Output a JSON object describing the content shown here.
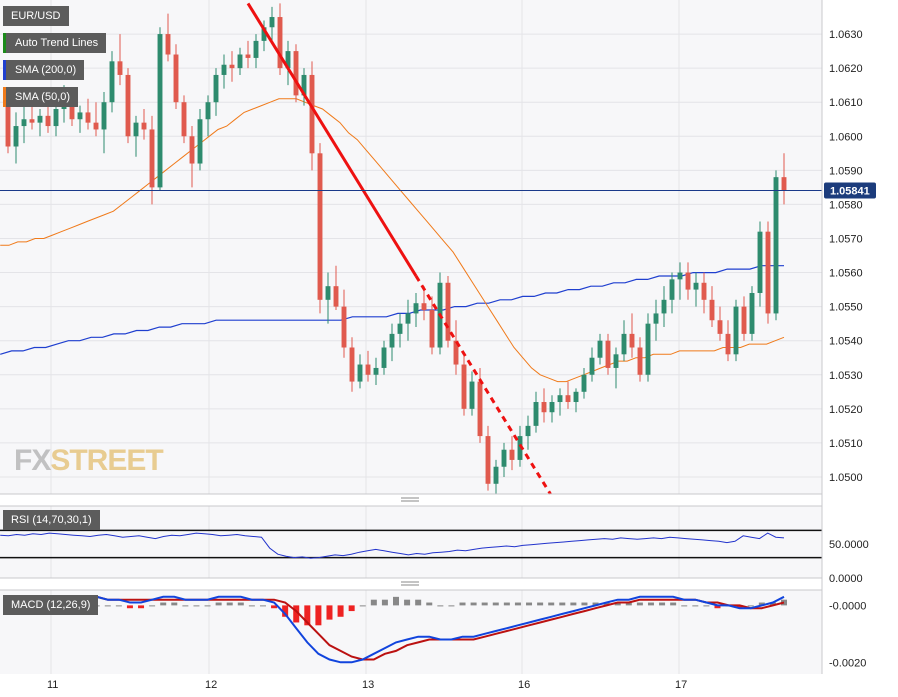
{
  "legend": {
    "symbol": "EUR/USD",
    "trend": "Auto Trend Lines",
    "sma200": "SMA (200,0)",
    "sma50": "SMA (50,0)",
    "rsi": "RSI (14,70,30,1)",
    "macd": "MACD (12,26,9)"
  },
  "watermark": {
    "fx": "FX",
    "street": "STREET"
  },
  "colors": {
    "bull": "#2e8b6e",
    "bear": "#e05a4e",
    "sma200": "#1f3fcf",
    "sma50": "#f07a1a",
    "trend": "#ee1111",
    "price_line": "#1a3a8a",
    "rsi": "#2233cc",
    "macd": "#1144dd",
    "signal": "#bb1111",
    "hist_pos": "#888888",
    "hist_neg": "#ee2222",
    "label_bg": "#5c5c5c",
    "legend_trend": "#1b8a1b",
    "legend_sma200": "#1f3fcf",
    "legend_sma50": "#f07a1a"
  },
  "chart_data": [
    {
      "type": "candlestick",
      "title": "EUR/USD",
      "ylim": [
        1.0495,
        1.064
      ],
      "y_ticks": [
        "1.0630",
        "1.0620",
        "1.0610",
        "1.0600",
        "1.0590",
        "1.0580",
        "1.0570",
        "1.0560",
        "1.0550",
        "1.0540",
        "1.0530",
        "1.0520",
        "1.0510",
        "1.0500"
      ],
      "x_ticks": [
        "11",
        "12",
        "13",
        "16",
        "17"
      ],
      "current_price": "1.05841",
      "ohlc": [
        [
          1.061,
          1.0613,
          1.0595,
          1.0597
        ],
        [
          1.0597,
          1.0607,
          1.0592,
          1.0603
        ],
        [
          1.0603,
          1.061,
          1.0598,
          1.0605
        ],
        [
          1.0605,
          1.061,
          1.0602,
          1.0604
        ],
        [
          1.0604,
          1.0608,
          1.06,
          1.0606
        ],
        [
          1.0606,
          1.0609,
          1.0601,
          1.0603
        ],
        [
          1.0603,
          1.061,
          1.06,
          1.0608
        ],
        [
          1.0608,
          1.0615,
          1.0604,
          1.0612
        ],
        [
          1.0612,
          1.0614,
          1.0603,
          1.0605
        ],
        [
          1.0605,
          1.0609,
          1.0601,
          1.0607
        ],
        [
          1.0607,
          1.0611,
          1.0602,
          1.0604
        ],
        [
          1.0604,
          1.061,
          1.06,
          1.0602
        ],
        [
          1.0602,
          1.0613,
          1.0595,
          1.061
        ],
        [
          1.061,
          1.0625,
          1.0607,
          1.0622
        ],
        [
          1.0622,
          1.063,
          1.0615,
          1.0618
        ],
        [
          1.0618,
          1.062,
          1.0598,
          1.06
        ],
        [
          1.06,
          1.0606,
          1.0594,
          1.0604
        ],
        [
          1.0604,
          1.0608,
          1.0599,
          1.0602
        ],
        [
          1.0602,
          1.0606,
          1.058,
          1.0585
        ],
        [
          1.0585,
          1.0632,
          1.0584,
          1.063
        ],
        [
          1.063,
          1.0636,
          1.0622,
          1.0624
        ],
        [
          1.0624,
          1.0627,
          1.0608,
          1.061
        ],
        [
          1.061,
          1.0612,
          1.0598,
          1.06
        ],
        [
          1.06,
          1.0603,
          1.0585,
          1.0592
        ],
        [
          1.0592,
          1.0608,
          1.059,
          1.0605
        ],
        [
          1.0605,
          1.0612,
          1.06,
          1.061
        ],
        [
          1.061,
          1.062,
          1.0606,
          1.0618
        ],
        [
          1.0618,
          1.0624,
          1.0614,
          1.0621
        ],
        [
          1.0621,
          1.0625,
          1.0616,
          1.062
        ],
        [
          1.062,
          1.0626,
          1.0618,
          1.0624
        ],
        [
          1.0624,
          1.0628,
          1.062,
          1.0623
        ],
        [
          1.0623,
          1.063,
          1.062,
          1.0628
        ],
        [
          1.0628,
          1.0634,
          1.0625,
          1.0632
        ],
        [
          1.0632,
          1.0638,
          1.0628,
          1.0635
        ],
        [
          1.0635,
          1.0639,
          1.0618,
          1.062
        ],
        [
          1.062,
          1.0628,
          1.0615,
          1.0625
        ],
        [
          1.0625,
          1.0627,
          1.061,
          1.0612
        ],
        [
          1.0612,
          1.062,
          1.0609,
          1.0618
        ],
        [
          1.0618,
          1.0622,
          1.059,
          1.0595
        ],
        [
          1.0595,
          1.0598,
          1.0548,
          1.0552
        ],
        [
          1.0552,
          1.056,
          1.0545,
          1.0556
        ],
        [
          1.0556,
          1.0562,
          1.0549,
          1.055
        ],
        [
          1.055,
          1.0555,
          1.0535,
          1.0538
        ],
        [
          1.0538,
          1.0541,
          1.0525,
          1.0528
        ],
        [
          1.0528,
          1.0536,
          1.0526,
          1.0533
        ],
        [
          1.0533,
          1.0537,
          1.0528,
          1.053
        ],
        [
          1.053,
          1.0535,
          1.0527,
          1.0532
        ],
        [
          1.0532,
          1.054,
          1.053,
          1.0538
        ],
        [
          1.0538,
          1.0545,
          1.0534,
          1.0542
        ],
        [
          1.0542,
          1.0548,
          1.0538,
          1.0545
        ],
        [
          1.0545,
          1.0552,
          1.054,
          1.0548
        ],
        [
          1.0548,
          1.0554,
          1.0544,
          1.0551
        ],
        [
          1.0551,
          1.0556,
          1.0546,
          1.0549
        ],
        [
          1.0549,
          1.0553,
          1.0536,
          1.0538
        ],
        [
          1.0538,
          1.056,
          1.0536,
          1.0557
        ],
        [
          1.0557,
          1.0559,
          1.0538,
          1.054
        ],
        [
          1.054,
          1.0546,
          1.053,
          1.0533
        ],
        [
          1.0533,
          1.0536,
          1.0518,
          1.052
        ],
        [
          1.052,
          1.0531,
          1.0518,
          1.0528
        ],
        [
          1.0528,
          1.0532,
          1.051,
          1.0512
        ],
        [
          1.0512,
          1.0515,
          1.0496,
          1.0498
        ],
        [
          1.0498,
          1.0505,
          1.0495,
          1.0503
        ],
        [
          1.0503,
          1.051,
          1.05,
          1.0508
        ],
        [
          1.0508,
          1.0512,
          1.0502,
          1.0505
        ],
        [
          1.0505,
          1.0515,
          1.0503,
          1.0512
        ],
        [
          1.0512,
          1.0518,
          1.0508,
          1.0515
        ],
        [
          1.0515,
          1.0525,
          1.0513,
          1.0522
        ],
        [
          1.0522,
          1.0526,
          1.0516,
          1.0519
        ],
        [
          1.0519,
          1.0524,
          1.0516,
          1.0522
        ],
        [
          1.0522,
          1.0526,
          1.0518,
          1.0524
        ],
        [
          1.0524,
          1.0528,
          1.052,
          1.0522
        ],
        [
          1.0522,
          1.0526,
          1.0519,
          1.0525
        ],
        [
          1.0525,
          1.0532,
          1.0523,
          1.053
        ],
        [
          1.053,
          1.0538,
          1.0528,
          1.0535
        ],
        [
          1.0535,
          1.0542,
          1.0533,
          1.054
        ],
        [
          1.054,
          1.0542,
          1.053,
          1.0532
        ],
        [
          1.0532,
          1.0538,
          1.0526,
          1.0536
        ],
        [
          1.0536,
          1.0546,
          1.0534,
          1.0542
        ],
        [
          1.0542,
          1.0548,
          1.0535,
          1.0538
        ],
        [
          1.0538,
          1.0541,
          1.0528,
          1.053
        ],
        [
          1.053,
          1.0548,
          1.0528,
          1.0545
        ],
        [
          1.0545,
          1.0552,
          1.054,
          1.0548
        ],
        [
          1.0548,
          1.0556,
          1.0544,
          1.0552
        ],
        [
          1.0552,
          1.056,
          1.0548,
          1.0558
        ],
        [
          1.0558,
          1.0563,
          1.0552,
          1.056
        ],
        [
          1.056,
          1.0563,
          1.0552,
          1.0555
        ],
        [
          1.0555,
          1.056,
          1.055,
          1.0557
        ],
        [
          1.0557,
          1.056,
          1.0548,
          1.0552
        ],
        [
          1.0552,
          1.0556,
          1.0544,
          1.0546
        ],
        [
          1.0546,
          1.055,
          1.054,
          1.0542
        ],
        [
          1.0542,
          1.0546,
          1.0534,
          1.0536
        ],
        [
          1.0536,
          1.0552,
          1.0534,
          1.055
        ],
        [
          1.055,
          1.0553,
          1.054,
          1.0542
        ],
        [
          1.0542,
          1.0556,
          1.054,
          1.0554
        ],
        [
          1.0554,
          1.0575,
          1.055,
          1.0572
        ],
        [
          1.0572,
          1.0575,
          1.0545,
          1.0548
        ],
        [
          1.0548,
          1.059,
          1.0546,
          1.0588
        ],
        [
          1.0588,
          1.0595,
          1.058,
          1.0584
        ]
      ],
      "sma50": [
        1.0568,
        1.0568,
        1.0569,
        1.0569,
        1.057,
        1.057,
        1.0571,
        1.0572,
        1.0573,
        1.0574,
        1.0575,
        1.0576,
        1.0577,
        1.0578,
        1.058,
        1.0582,
        1.0584,
        1.0586,
        1.0588,
        1.059,
        1.0592,
        1.0594,
        1.0596,
        1.0598,
        1.06,
        1.0602,
        1.0603,
        1.0605,
        1.0607,
        1.0608,
        1.0609,
        1.061,
        1.0611,
        1.0611,
        1.0611,
        1.061,
        1.0609,
        1.0608,
        1.0606,
        1.0604,
        1.0601,
        1.0599,
        1.0596,
        1.0593,
        1.059,
        1.0587,
        1.0584,
        1.0581,
        1.0578,
        1.0575,
        1.0572,
        1.0569,
        1.0566,
        1.0562,
        1.0558,
        1.0554,
        1.055,
        1.0546,
        1.0542,
        1.0538,
        1.0535,
        1.0532,
        1.053,
        1.0529,
        1.0528,
        1.0528,
        1.0529,
        1.053,
        1.0531,
        1.0532,
        1.0533,
        1.0534,
        1.0534,
        1.0535,
        1.0535,
        1.0536,
        1.0536,
        1.0536,
        1.0537,
        1.0537,
        1.0537,
        1.0537,
        1.0537,
        1.0538,
        1.0538,
        1.0538,
        1.0539,
        1.0539,
        1.0539,
        1.054,
        1.0541
      ],
      "sma200": [
        1.0536,
        1.0537,
        1.0537,
        1.0538,
        1.0538,
        1.0539,
        1.054,
        1.054,
        1.0541,
        1.0541,
        1.0542,
        1.0542,
        1.0543,
        1.0543,
        1.0544,
        1.0544,
        1.0545,
        1.0545,
        1.0545,
        1.0546,
        1.0546,
        1.0546,
        1.0546,
        1.0546,
        1.0546,
        1.0546,
        1.0546,
        1.0546,
        1.0546,
        1.0546,
        1.0546,
        1.0547,
        1.0547,
        1.0547,
        1.0547,
        1.0548,
        1.0548,
        1.0549,
        1.0549,
        1.0549,
        1.055,
        1.055,
        1.0551,
        1.0551,
        1.0552,
        1.0552,
        1.0553,
        1.0553,
        1.0554,
        1.0554,
        1.0555,
        1.0555,
        1.0556,
        1.0556,
        1.0557,
        1.0557,
        1.0558,
        1.0558,
        1.0559,
        1.0559,
        1.0559,
        1.056,
        1.056,
        1.056,
        1.0561,
        1.0561,
        1.0561,
        1.0562,
        1.0562,
        1.0562
      ],
      "trendline": {
        "from": [
          1.0639,
          1.0559
        ],
        "dashed_to": 1.0495
      }
    },
    {
      "type": "line",
      "title": "RSI (14,70,30,1)",
      "ylim": [
        0,
        100
      ],
      "y_ticks": [
        "50.0000",
        "0.0000"
      ],
      "levels": [
        70,
        30
      ],
      "values": [
        63,
        62,
        64,
        63,
        65,
        64,
        66,
        65,
        64,
        63,
        62,
        61,
        63,
        64,
        62,
        60,
        61,
        62,
        60,
        58,
        61,
        63,
        62,
        64,
        66,
        65,
        64,
        62,
        63,
        64,
        62,
        61,
        60,
        44,
        35,
        32,
        30,
        31,
        29,
        30,
        32,
        34,
        33,
        35,
        38,
        40,
        42,
        40,
        38,
        36,
        34,
        36,
        35,
        37,
        38,
        39,
        41,
        40,
        42,
        44,
        45,
        46,
        47,
        46,
        48,
        49,
        50,
        51,
        52,
        53,
        54,
        55,
        56,
        57,
        58,
        57,
        59,
        58,
        57,
        58,
        59,
        58,
        60,
        59,
        58,
        57,
        56,
        55,
        54,
        52,
        54,
        62,
        60,
        58,
        66,
        60,
        59
      ]
    },
    {
      "type": "line",
      "title": "MACD (12,26,9)",
      "ylim": [
        -0.0022,
        0.0004
      ],
      "y_ticks": [
        "-0.0000",
        "-0.0020"
      ],
      "macd": [
        0.0003,
        0.0003,
        0.0002,
        0.0003,
        0.0003,
        0.0002,
        0.0002,
        0.0003,
        0.0003,
        0.0002,
        0.0002,
        0.0001,
        0.0001,
        0.0002,
        0.0003,
        0.0003,
        0.0002,
        0.0002,
        0.0002,
        0.0003,
        0.0003,
        0.0003,
        0.0002,
        0.0002,
        0.0001,
        -0.0003,
        -0.0008,
        -0.0013,
        -0.0017,
        -0.0019,
        -0.002,
        -0.002,
        -0.0019,
        -0.0017,
        -0.0015,
        -0.0013,
        -0.0012,
        -0.0011,
        -0.0011,
        -0.0012,
        -0.0012,
        -0.0011,
        -0.0011,
        -0.001,
        -0.0009,
        -0.0008,
        -0.0007,
        -0.0006,
        -0.0005,
        -0.0004,
        -0.0003,
        -0.0002,
        -0.0001,
        0.0,
        0.0001,
        0.0002,
        0.0002,
        0.0003,
        0.0003,
        0.0003,
        0.0003,
        0.0002,
        0.0002,
        0.0001,
        0.0,
        0.0,
        -0.0001,
        -0.0001,
        0.0,
        0.0001,
        0.0003
      ],
      "signal": [
        0.0002,
        0.0002,
        0.0002,
        0.0003,
        0.0003,
        0.0003,
        0.0003,
        0.0003,
        0.0003,
        0.0002,
        0.0002,
        0.0002,
        0.0002,
        0.0002,
        0.0002,
        0.0002,
        0.0002,
        0.0002,
        0.0002,
        0.0002,
        0.0002,
        0.0002,
        0.0002,
        0.0002,
        0.0002,
        0.0001,
        -0.0002,
        -0.0006,
        -0.001,
        -0.0014,
        -0.0016,
        -0.0018,
        -0.0019,
        -0.0019,
        -0.0017,
        -0.0016,
        -0.0014,
        -0.0013,
        -0.0012,
        -0.0012,
        -0.0012,
        -0.0012,
        -0.0012,
        -0.0011,
        -0.001,
        -0.0009,
        -0.0008,
        -0.0007,
        -0.0006,
        -0.0005,
        -0.0004,
        -0.0003,
        -0.0002,
        -0.0001,
        0.0,
        0.0001,
        0.0001,
        0.0002,
        0.0002,
        0.0002,
        0.0002,
        0.0002,
        0.0002,
        0.0001,
        0.0001,
        0.0,
        0.0,
        -0.0001,
        -0.0001,
        0.0,
        0.0001
      ],
      "histogram": [
        0.0001,
        0.0001,
        0.0,
        0.0,
        0.0,
        -0.0001,
        -0.0001,
        0.0,
        0.0,
        0.0,
        0.0,
        -0.0001,
        -0.0001,
        0.0,
        0.0001,
        0.0001,
        0.0,
        0.0,
        0.0,
        0.0001,
        0.0001,
        0.0001,
        0.0,
        0.0,
        -0.0001,
        -0.0004,
        -0.0006,
        -0.0007,
        -0.0007,
        -0.0005,
        -0.0004,
        -0.0002,
        0.0,
        0.0002,
        0.0002,
        0.0003,
        0.0002,
        0.0002,
        0.0001,
        0.0,
        0.0,
        0.0001,
        0.0001,
        0.0001,
        0.0001,
        0.0001,
        0.0001,
        0.0001,
        0.0001,
        0.0001,
        0.0001,
        0.0001,
        0.0001,
        0.0001,
        0.0001,
        0.0001,
        0.0001,
        0.0001,
        0.0001,
        0.0001,
        0.0001,
        0.0,
        0.0,
        0.0,
        -0.0001,
        0.0,
        -0.0001,
        0.0,
        0.0001,
        0.0001,
        0.0002
      ]
    }
  ]
}
